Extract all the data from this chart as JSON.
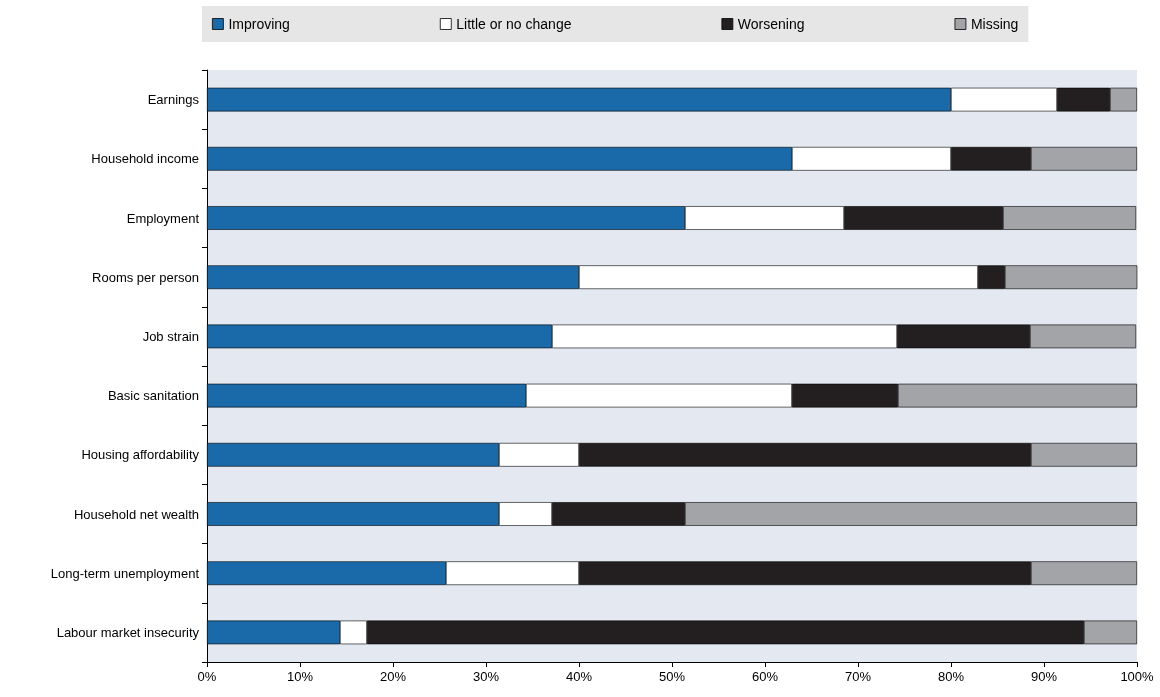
{
  "chart_data": {
    "type": "bar",
    "orientation": "horizontal",
    "stacked": true,
    "categories": [
      "Earnings",
      "Household income",
      "Employment",
      "Rooms per person",
      "Job strain",
      "Basic sanitation",
      "Housing affordability",
      "Household net wealth",
      "Long-term unemployment",
      "Labour market insecurity"
    ],
    "series": [
      {
        "name": "Improving",
        "color": "#1a6aa9",
        "values": [
          80,
          62.9,
          51.4,
          40,
          37.1,
          34.3,
          31.4,
          31.4,
          25.7,
          14.3
        ]
      },
      {
        "name": "Little or no change",
        "color": "#ffffff",
        "values": [
          11.4,
          17.1,
          17.1,
          42.9,
          37.1,
          28.6,
          8.6,
          5.7,
          14.3,
          2.9
        ]
      },
      {
        "name": "Worsening",
        "color": "#231f20",
        "values": [
          5.7,
          8.6,
          17.1,
          2.9,
          14.3,
          11.4,
          48.6,
          14.3,
          48.6,
          77.1
        ]
      },
      {
        "name": "Missing",
        "color": "#a2a4a7",
        "values": [
          2.9,
          11.4,
          14.3,
          14.3,
          11.4,
          25.7,
          11.4,
          48.6,
          11.4,
          5.7
        ]
      }
    ],
    "xlim": [
      0,
      100
    ],
    "xticks": [
      {
        "value": 0,
        "label": "0%"
      },
      {
        "value": 10,
        "label": "10%"
      },
      {
        "value": 20,
        "label": "20%"
      },
      {
        "value": 30,
        "label": "30%"
      },
      {
        "value": 40,
        "label": "40%"
      },
      {
        "value": 50,
        "label": "50%"
      },
      {
        "value": 60,
        "label": "60%"
      },
      {
        "value": 70,
        "label": "70%"
      },
      {
        "value": 80,
        "label": "80%"
      },
      {
        "value": 90,
        "label": "90%"
      },
      {
        "value": 100,
        "label": "100%"
      }
    ],
    "grid": false,
    "legend": "top"
  }
}
